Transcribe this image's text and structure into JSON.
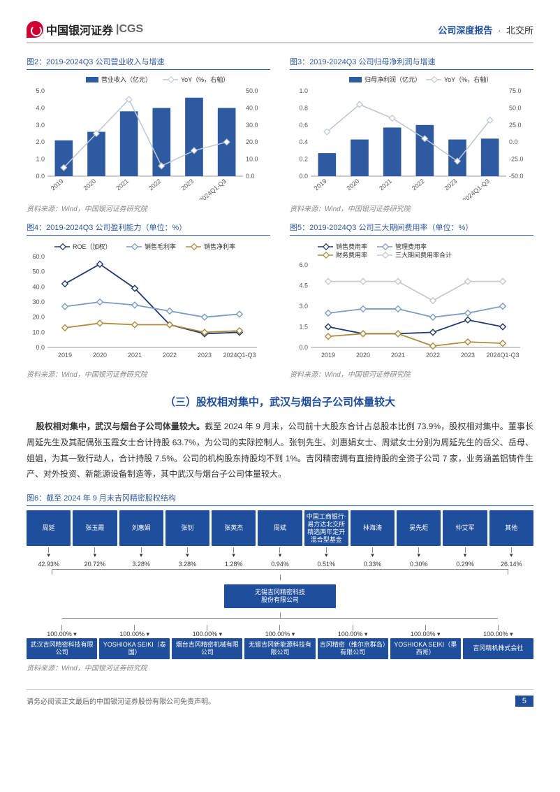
{
  "header": {
    "logo_text": "中国银河证券",
    "logo_cgs": "|CGS",
    "right_blue": "公司深度报告",
    "right_dot": "·",
    "right_gray": "北交所"
  },
  "fig2": {
    "title": "图2：2019-2024Q3 公司营业收入与增速",
    "legend_bar": "营业收入（亿元）",
    "legend_line": "YoY（%，右轴）",
    "categories": [
      "2019",
      "2020",
      "2021",
      "2022",
      "2023",
      "2024Q1-Q3"
    ],
    "bar_values": [
      2.1,
      2.6,
      3.8,
      4.0,
      4.6,
      4.0
    ],
    "line_values": [
      5,
      25,
      45,
      6,
      15,
      20
    ],
    "bar_color": "#2e5aa0",
    "line_color": "#bcc6d6",
    "y1_max": 5.0,
    "y1_step": 1.0,
    "y2_max": 50.0,
    "y2_step": 10.0,
    "source": "资料来源：Wind，中国银河证券研究院"
  },
  "fig3": {
    "title": "图3：2019-2024Q3 公司归母净利润与增速",
    "legend_bar": "归母净利润（亿元）",
    "legend_line": "YoY（%，右轴）",
    "categories": [
      "2019",
      "2020",
      "2021",
      "2022",
      "2023",
      "2024Q1-Q3"
    ],
    "bar_values": [
      0.27,
      0.43,
      0.57,
      0.6,
      0.43,
      0.44
    ],
    "line_values": [
      15,
      55,
      35,
      5,
      -28,
      32
    ],
    "bar_color": "#2e5aa0",
    "line_color": "#bcc6d6",
    "y1_max": 1.0,
    "y1_step": 0.2,
    "y2_min": -50.0,
    "y2_max": 75.0,
    "y2_step": 25.0,
    "source": "资料来源：Wind，中国银河证券研究院"
  },
  "fig4": {
    "title": "图4：2019-2024Q3 公司盈利能力（单位：%）",
    "categories": [
      "2019",
      "2020",
      "2021",
      "2022",
      "2023",
      "2024Q1-Q3"
    ],
    "series": [
      {
        "name": "ROE（加权）",
        "color": "#1f3a6e",
        "values": [
          42,
          55,
          39,
          15,
          9,
          10
        ]
      },
      {
        "name": "销售毛利率",
        "color": "#7a9cc6",
        "values": [
          27,
          30,
          28,
          24,
          20,
          22
        ]
      },
      {
        "name": "销售净利率",
        "color": "#b08a3e",
        "values": [
          13,
          16,
          15,
          15,
          10,
          11
        ]
      }
    ],
    "y_max": 60.0,
    "y_step": 10.0,
    "source": "资料来源：Wind，中国银河证券研究院"
  },
  "fig5": {
    "title": "图5：2019-2024Q3 公司三大期间费用率（单位：%）",
    "categories": [
      "2019",
      "2020",
      "2021",
      "2022",
      "2023",
      "2024Q1-Q3"
    ],
    "series": [
      {
        "name": "销售费用率",
        "color": "#1f3a6e",
        "values": [
          1.5,
          1.0,
          1.0,
          1.1,
          2.0,
          1.5
        ]
      },
      {
        "name": "管理费用率",
        "color": "#7a9cc6",
        "values": [
          2.5,
          2.8,
          2.8,
          2.2,
          2.5,
          3.0
        ]
      },
      {
        "name": "财务费用率",
        "color": "#b08a3e",
        "values": [
          0.8,
          1.0,
          1.0,
          0.1,
          0.4,
          0.3
        ]
      },
      {
        "name": "三大期间费用率合计",
        "color": "#c8c8c8",
        "values": [
          4.8,
          4.8,
          4.8,
          3.4,
          4.8,
          4.8
        ]
      }
    ],
    "y_max": 6.0,
    "y_step": 1.5,
    "source": "资料来源：Wind，中国银河证券研究院"
  },
  "section": {
    "title": "（三）股权相对集中，武汉与烟台子公司体量较大",
    "body_bold": "股权相对集中，武汉与烟台子公司体量较大。",
    "body_rest": "截至 2024 年 9 月末，公司前十大股东合计占总股本比例 73.9%，股权相对集中。董事长周延先生及其配偶张玉霞女士合计持股 63.7%，为公司的实际控制人。张钊先生、刘惠娟女士、周斌女士分别为周延先生的岳父、岳母、姐姐，为其一致行动人，合计持股 7.5%。公司的机构股东持股均不到 1%。吉冈精密拥有直接持股的全资子公司 7 家，业务涵盖铝铸件生产、对外投资、新能源设备制造等，其中武汉与烟台子公司体量较大。"
  },
  "fig6": {
    "title": "图6：截至 2024 年 9 月末吉冈精密股权结构",
    "top_row": [
      {
        "name": "周延",
        "pct": "42.93%"
      },
      {
        "name": "张玉霞",
        "pct": "20.72%"
      },
      {
        "name": "刘惠娟",
        "pct": "3.28%"
      },
      {
        "name": "张钊",
        "pct": "3.28%"
      },
      {
        "name": "张英杰",
        "pct": "1.28%"
      },
      {
        "name": "周斌",
        "pct": "0.94%"
      },
      {
        "name": "中国工商银行-易方达北交所精选两年定开混合型基金",
        "pct": "0.51%"
      },
      {
        "name": "林海涛",
        "pct": "0.33%"
      },
      {
        "name": "吴先炬",
        "pct": "0.30%"
      },
      {
        "name": "仲艾军",
        "pct": "0.29%"
      },
      {
        "name": "其他",
        "pct": "26.14%"
      }
    ],
    "center": "无锡吉冈精密科技\n股份有限公司",
    "bottom_row": [
      {
        "name": "武汉吉冈精密科技有限公司",
        "pct": "100.00%"
      },
      {
        "name": "YOSHIOKA SEIKI（泰国）",
        "pct": "100.00%"
      },
      {
        "name": "烟台吉冈精密机械有限公司",
        "pct": "100.00%"
      },
      {
        "name": "无锡吉冈新能源科技有限公司",
        "pct": "100.00%"
      },
      {
        "name": "吉冈精密（维尔京群岛）有限公司",
        "pct": "100.00%"
      },
      {
        "name": "YOSHIOKA SEIKI（墨西哥）",
        "pct": "100.00%"
      },
      {
        "name": "吉冈精机株式会社",
        "pct": "100.00%"
      }
    ],
    "source": "资料来源：Wind，中国银河证券研究院"
  },
  "footer": {
    "disclaimer": "请务必阅读正文最后的中国银河证券股份有限公司免责声明。",
    "page": "5"
  }
}
